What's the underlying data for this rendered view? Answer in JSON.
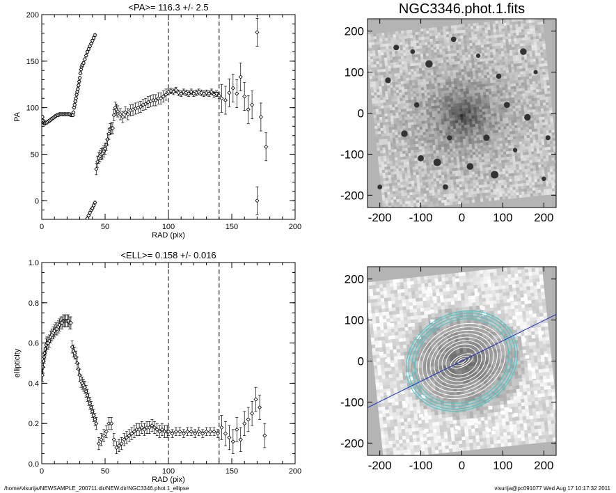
{
  "footer": {
    "path": "/home/visurija/NEWSAMPLE_200711.dir/NEW.dir/NGC3346.phot.1_ellipse",
    "stamp": "visurija@pc091077  Wed Aug 17 10:17:32 2011"
  },
  "colors": {
    "ink": "#000000",
    "frame_gray": "#b4b4b4",
    "cyan_contour": "#3cc8c8",
    "blue_axis": "#1c2fbf"
  },
  "chart_data": [
    {
      "id": "pa",
      "type": "scatter",
      "title": "<PA>= 116.3 +/-   2.5",
      "xlabel": "RAD (pix)",
      "ylabel": "PA",
      "xlim": [
        0,
        200
      ],
      "ylim": [
        -20,
        200
      ],
      "xticks": [
        0,
        50,
        100,
        150,
        200
      ],
      "yticks": [
        0,
        50,
        100,
        150,
        200
      ],
      "vlines": [
        100,
        140
      ],
      "mean_line": {
        "x": [
          100,
          140
        ],
        "y": 116.3
      },
      "series": [
        {
          "points": [
            [
              0.5,
              90
            ],
            [
              1,
              86
            ],
            [
              1.5,
              84
            ],
            [
              2,
              83
            ],
            [
              2.5,
              83
            ],
            [
              3,
              84
            ],
            [
              4,
              84
            ],
            [
              5,
              85
            ],
            [
              6,
              86
            ],
            [
              7,
              87
            ],
            [
              8,
              88
            ],
            [
              9,
              89
            ],
            [
              10,
              90
            ],
            [
              11,
              91
            ],
            [
              12,
              92
            ],
            [
              13,
              92
            ],
            [
              14,
              93
            ],
            [
              15,
              93
            ],
            [
              16,
              93
            ],
            [
              17,
              93
            ],
            [
              18,
              93
            ],
            [
              19,
              93
            ],
            [
              20,
              93
            ],
            [
              21,
              93
            ],
            [
              22,
              93
            ],
            [
              23,
              92
            ],
            [
              24,
              92
            ],
            [
              24.5,
              92
            ]
          ],
          "err": 1.5
        },
        {
          "points": [
            [
              25,
              95
            ],
            [
              25.5,
              100
            ],
            [
              26,
              103
            ],
            [
              26.5,
              107
            ],
            [
              27,
              110
            ],
            [
              27.5,
              114
            ],
            [
              28,
              117
            ],
            [
              28.5,
              120
            ],
            [
              29,
              124
            ],
            [
              29.5,
              128
            ],
            [
              30,
              132
            ],
            [
              30.5,
              137
            ],
            [
              31,
              141
            ],
            [
              31.5,
              144
            ],
            [
              32,
              146
            ],
            [
              33,
              148
            ],
            [
              34,
              152
            ],
            [
              35,
              156
            ],
            [
              36,
              160
            ],
            [
              37,
              163
            ],
            [
              38,
              166
            ],
            [
              39,
              169
            ],
            [
              40,
              172
            ],
            [
              41,
              175
            ],
            [
              42,
              178
            ]
          ],
          "err": 1.5
        },
        {
          "points": [
            [
              35,
              -22
            ],
            [
              36,
              -19
            ],
            [
              37,
              -16
            ],
            [
              38,
              -13
            ],
            [
              39,
              -10
            ],
            [
              40,
              -8
            ],
            [
              41,
              -5
            ],
            [
              42,
              -2
            ]
          ],
          "err": 1.5
        },
        {
          "points": [
            [
              43,
              34
            ],
            [
              44,
              42
            ],
            [
              45,
              46
            ],
            [
              46,
              48
            ],
            [
              47,
              50
            ],
            [
              48,
              51
            ],
            [
              49,
              53
            ],
            [
              50,
              56
            ],
            [
              51,
              60
            ],
            [
              52,
              66
            ],
            [
              53,
              72
            ],
            [
              54,
              77
            ],
            [
              55,
              78
            ],
            [
              56,
              78
            ],
            [
              57,
              92
            ],
            [
              58,
              100
            ],
            [
              59,
              98
            ],
            [
              60,
              96
            ],
            [
              62,
              93
            ],
            [
              64,
              90
            ],
            [
              66,
              95
            ],
            [
              68,
              93
            ],
            [
              70,
              97
            ],
            [
              72,
              98
            ],
            [
              74,
              99
            ],
            [
              76,
              100
            ],
            [
              78,
              101
            ],
            [
              80,
              103
            ],
            [
              82,
              104
            ],
            [
              84,
              106
            ],
            [
              86,
              107
            ],
            [
              88,
              108
            ],
            [
              90,
              108
            ],
            [
              92,
              110
            ],
            [
              94,
              110
            ],
            [
              96,
              112
            ],
            [
              98,
              114
            ]
          ],
          "err": 6
        },
        {
          "points": [
            [
              100,
              117
            ],
            [
              102,
              118
            ],
            [
              104,
              117
            ],
            [
              106,
              119
            ],
            [
              108,
              116
            ],
            [
              110,
              115
            ],
            [
              112,
              117
            ],
            [
              114,
              116
            ],
            [
              116,
              115
            ],
            [
              118,
              117
            ],
            [
              120,
              115
            ],
            [
              122,
              116
            ],
            [
              124,
              117
            ],
            [
              126,
              116
            ],
            [
              128,
              115
            ],
            [
              130,
              116
            ],
            [
              132,
              115
            ],
            [
              134,
              117
            ],
            [
              136,
              114
            ],
            [
              138,
              115
            ],
            [
              140,
              113
            ]
          ],
          "err": 3
        },
        {
          "points": [
            [
              142,
              110
            ],
            [
              145,
              108
            ],
            [
              148,
              116
            ],
            [
              151,
              121
            ],
            [
              154,
              115
            ],
            [
              157,
              133
            ],
            [
              160,
              112
            ],
            [
              163,
              98
            ],
            [
              166,
              103
            ],
            [
              170,
              181
            ],
            [
              170,
              0
            ],
            [
              173,
              90
            ],
            [
              177,
              58
            ]
          ],
          "err": 15
        }
      ]
    },
    {
      "id": "ell",
      "type": "scatter",
      "title": "<ELL>= 0.158 +/-  0.016",
      "xlabel": "RAD (pix)",
      "ylabel": "ellipticity",
      "xlim": [
        0,
        200
      ],
      "ylim": [
        0,
        1
      ],
      "xticks": [
        0,
        50,
        100,
        150,
        200
      ],
      "yticks": [
        0.0,
        0.2,
        0.4,
        0.6,
        0.8,
        1.0
      ],
      "vlines": [
        100,
        140
      ],
      "mean_line": {
        "x": [
          100,
          140
        ],
        "y": 0.158
      },
      "series": [
        {
          "points": [
            [
              0.5,
              0.44
            ],
            [
              1,
              0.48
            ],
            [
              1.5,
              0.51
            ],
            [
              2,
              0.53
            ],
            [
              2.5,
              0.55
            ],
            [
              3,
              0.57
            ],
            [
              3.5,
              0.59
            ],
            [
              4,
              0.6
            ],
            [
              5,
              0.6
            ],
            [
              6,
              0.61
            ],
            [
              7,
              0.63
            ],
            [
              8,
              0.64
            ],
            [
              9,
              0.65
            ],
            [
              10,
              0.66
            ],
            [
              11,
              0.67
            ],
            [
              12,
              0.67
            ],
            [
              13,
              0.68
            ],
            [
              14,
              0.69
            ],
            [
              15,
              0.7
            ],
            [
              16,
              0.7
            ],
            [
              17,
              0.71
            ],
            [
              18,
              0.71
            ],
            [
              19,
              0.71
            ],
            [
              20,
              0.71
            ],
            [
              21,
              0.71
            ],
            [
              22,
              0.7
            ],
            [
              23,
              0.7
            ]
          ],
          "err": 0.03
        },
        {
          "points": [
            [
              24,
              0.58
            ],
            [
              25,
              0.56
            ],
            [
              26,
              0.55
            ],
            [
              27,
              0.53
            ],
            [
              28,
              0.5
            ],
            [
              29,
              0.47
            ],
            [
              30,
              0.44
            ],
            [
              31,
              0.41
            ],
            [
              32,
              0.4
            ],
            [
              33,
              0.39
            ],
            [
              34,
              0.38
            ],
            [
              35,
              0.36
            ],
            [
              36,
              0.34
            ],
            [
              37,
              0.32
            ],
            [
              38,
              0.3
            ],
            [
              39,
              0.28
            ],
            [
              40,
              0.26
            ],
            [
              41,
              0.24
            ],
            [
              42,
              0.22
            ],
            [
              43,
              0.2
            ]
          ],
          "err": 0.03
        },
        {
          "points": [
            [
              45,
              0.1
            ],
            [
              47,
              0.12
            ],
            [
              49,
              0.14
            ],
            [
              51,
              0.16
            ],
            [
              53,
              0.2
            ],
            [
              55,
              0.2
            ],
            [
              57,
              0.12
            ],
            [
              59,
              0.08
            ],
            [
              61,
              0.09
            ],
            [
              63,
              0.1
            ],
            [
              65,
              0.12
            ],
            [
              67,
              0.13
            ],
            [
              69,
              0.14
            ],
            [
              71,
              0.15
            ],
            [
              73,
              0.16
            ],
            [
              75,
              0.17
            ],
            [
              77,
              0.17
            ],
            [
              79,
              0.18
            ],
            [
              81,
              0.17
            ],
            [
              83,
              0.18
            ],
            [
              85,
              0.18
            ],
            [
              87,
              0.19
            ],
            [
              89,
              0.18
            ],
            [
              91,
              0.17
            ],
            [
              93,
              0.16
            ],
            [
              95,
              0.17
            ],
            [
              97,
              0.16
            ],
            [
              99,
              0.16
            ]
          ],
          "err": 0.03
        },
        {
          "points": [
            [
              100,
              0.16
            ],
            [
              103,
              0.15
            ],
            [
              106,
              0.16
            ],
            [
              109,
              0.16
            ],
            [
              112,
              0.15
            ],
            [
              115,
              0.16
            ],
            [
              118,
              0.16
            ],
            [
              121,
              0.15
            ],
            [
              124,
              0.16
            ],
            [
              127,
              0.15
            ],
            [
              130,
              0.16
            ],
            [
              133,
              0.16
            ],
            [
              136,
              0.16
            ],
            [
              139,
              0.15
            ]
          ],
          "err": 0.02
        },
        {
          "points": [
            [
              142,
              0.18
            ],
            [
              145,
              0.15
            ],
            [
              148,
              0.13
            ],
            [
              151,
              0.11
            ],
            [
              154,
              0.17
            ],
            [
              157,
              0.12
            ],
            [
              160,
              0.2
            ],
            [
              163,
              0.22
            ],
            [
              166,
              0.25
            ],
            [
              169,
              0.32
            ],
            [
              172,
              0.28
            ],
            [
              176,
              0.14
            ]
          ],
          "err": 0.06
        }
      ]
    },
    {
      "id": "img",
      "type": "heatmap",
      "title": "NGC3346.phot.1.fits",
      "xlim": [
        -230,
        230
      ],
      "ylim": [
        -230,
        230
      ],
      "xticks": [
        -200,
        -100,
        0,
        100,
        200
      ],
      "yticks": [
        -200,
        -100,
        0,
        100,
        200
      ],
      "galaxy_center": [
        0,
        0
      ],
      "stars": [
        [
          -160,
          160
        ],
        [
          -120,
          150
        ],
        [
          -80,
          120
        ],
        [
          40,
          140
        ],
        [
          90,
          90
        ],
        [
          150,
          150
        ],
        [
          180,
          100
        ],
        [
          -180,
          80
        ],
        [
          -140,
          -50
        ],
        [
          -100,
          -110
        ],
        [
          -60,
          -120
        ],
        [
          -40,
          -180
        ],
        [
          20,
          -130
        ],
        [
          80,
          -150
        ],
        [
          130,
          -90
        ],
        [
          210,
          -60
        ],
        [
          200,
          -160
        ],
        [
          -200,
          -180
        ],
        [
          -30,
          -60
        ],
        [
          110,
          20
        ],
        [
          -110,
          20
        ],
        [
          60,
          -60
        ],
        [
          160,
          -10
        ],
        [
          -20,
          180
        ]
      ]
    },
    {
      "id": "ellipses",
      "type": "heatmap",
      "title": "",
      "xlim": [
        -230,
        230
      ],
      "ylim": [
        -230,
        230
      ],
      "xticks": [
        -200,
        -100,
        0,
        100,
        200
      ],
      "yticks": [
        -200,
        -100,
        0,
        100,
        200
      ],
      "pa_deg": 116.3,
      "white_radii": [
        10,
        20,
        30,
        40,
        50,
        60,
        70,
        80,
        90,
        100,
        110
      ],
      "cyan_radii": [
        118,
        126,
        134,
        140
      ],
      "ell": 0.16
    }
  ]
}
